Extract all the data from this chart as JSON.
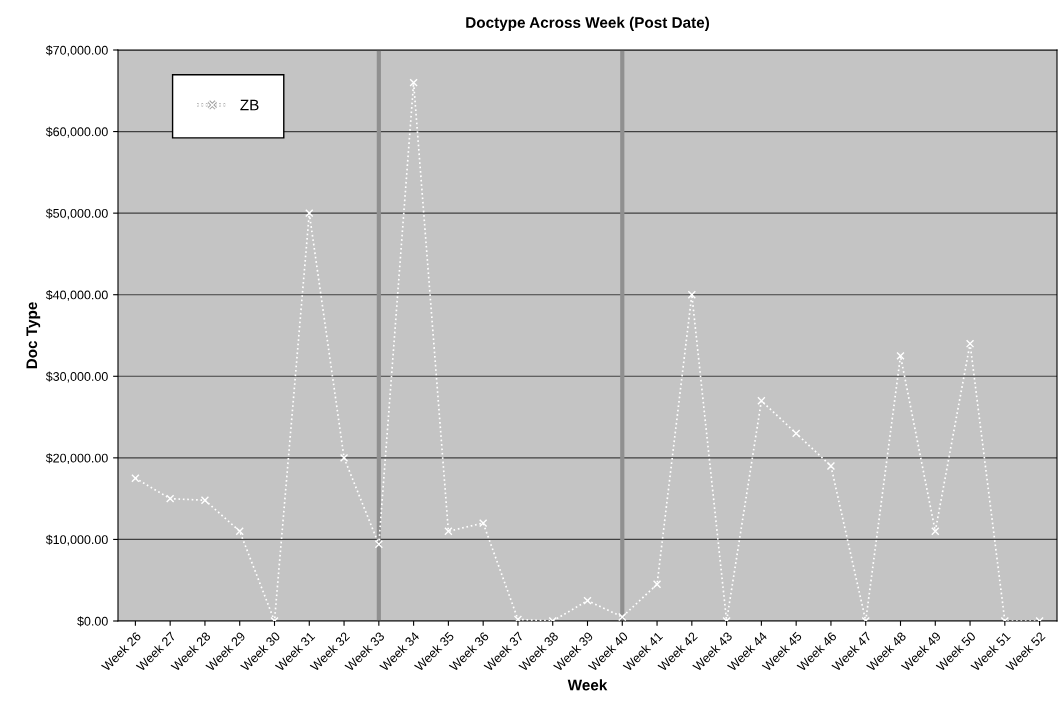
{
  "chart_data": {
    "type": "line",
    "title": "Doctype Across Week (Post Date)",
    "xlabel": "Week",
    "ylabel": "Doc Type",
    "categories": [
      "Week 26",
      "Week 27",
      "Week 28",
      "Week 29",
      "Week 30",
      "Week 31",
      "Week 32",
      "Week 33",
      "Week 34",
      "Week 35",
      "Week 36",
      "Week 37",
      "Week 38",
      "Week 39",
      "Week 40",
      "Week 41",
      "Week 42",
      "Week 43",
      "Week 44",
      "Week 45",
      "Week 46",
      "Week 47",
      "Week 48",
      "Week 49",
      "Week 50",
      "Week 51",
      "Week 52"
    ],
    "series": [
      {
        "name": "ZB",
        "color": "#ffffff",
        "values": [
          17500,
          15000,
          14800,
          11000,
          0,
          50000,
          20000,
          9400,
          66000,
          11000,
          12000,
          200,
          0,
          2500,
          500,
          4500,
          40000,
          0,
          27000,
          23000,
          19000,
          0,
          32500,
          11000,
          34000,
          0,
          0
        ]
      }
    ],
    "ylim": [
      0,
      70000
    ],
    "yticks": [
      {
        "value": 0,
        "label": "$0.00"
      },
      {
        "value": 10000,
        "label": "$10,000.00"
      },
      {
        "value": 20000,
        "label": "$20,000.00"
      },
      {
        "value": 30000,
        "label": "$30,000.00"
      },
      {
        "value": 40000,
        "label": "$40,000.00"
      },
      {
        "value": 50000,
        "label": "$50,000.00"
      },
      {
        "value": 60000,
        "label": "$60,000.00"
      },
      {
        "value": 70000,
        "label": "$70,000.00"
      }
    ],
    "ref_lines": [
      {
        "axis": "x",
        "value": "Week 33",
        "color": "#909090"
      },
      {
        "axis": "x",
        "value": "Week 40",
        "color": "#909090"
      }
    ],
    "grid": "y",
    "legend": "top left",
    "marker": "cross",
    "line_style": "dotted"
  }
}
